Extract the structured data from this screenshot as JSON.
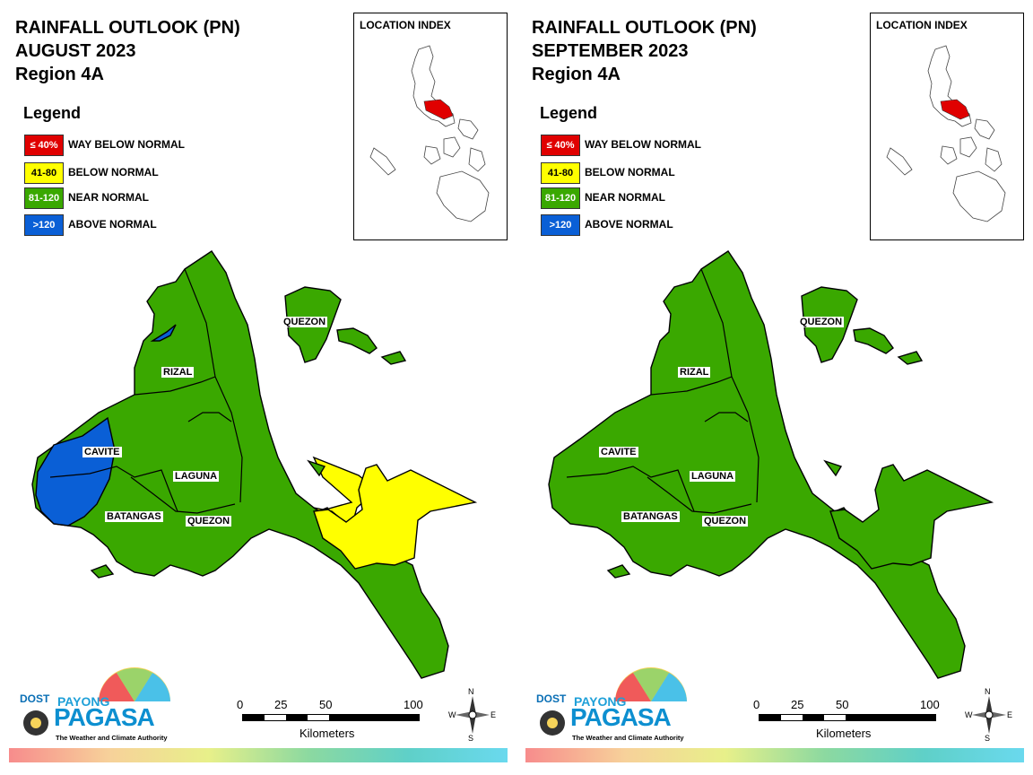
{
  "panels": [
    {
      "title_line1": "RAINFALL OUTLOOK (PN)",
      "title_line2": "AUGUST 2023",
      "title_line3": "Region 4A",
      "legend_title": "Legend",
      "legend": [
        {
          "code": "≤ 40%",
          "label": "WAY BELOW NORMAL",
          "color": "#e00000"
        },
        {
          "code": "41-80",
          "label": "BELOW NORMAL",
          "color": "#ffff00"
        },
        {
          "code": "81-120",
          "label": "NEAR NORMAL",
          "color": "#3aa800"
        },
        {
          "code": ">120",
          "label": "ABOVE NORMAL",
          "color": "#0a5fd6"
        }
      ],
      "location_index_title": "LOCATION INDEX",
      "labels": {
        "quezon_north": "QUEZON",
        "rizal": "RIZAL",
        "cavite": "CAVITE",
        "laguna": "LAGUNA",
        "batangas": "BATANGAS",
        "quezon_south": "QUEZON"
      },
      "scale": {
        "t0": "0",
        "t1": "25",
        "t2": "50",
        "t3": "100",
        "unit": "Kilometers"
      },
      "compass": {
        "n": "N",
        "s": "S",
        "e": "E",
        "w": "W"
      },
      "logo": {
        "dost": "DOST",
        "payong": "PAYONG",
        "pagasa": "PAGASA",
        "tagline": "The Weather and Climate Authority"
      }
    },
    {
      "title_line1": "RAINFALL OUTLOOK (PN)",
      "title_line2": "SEPTEMBER 2023",
      "title_line3": "Region 4A",
      "legend_title": "Legend",
      "legend": [
        {
          "code": "≤ 40%",
          "label": "WAY BELOW NORMAL",
          "color": "#e00000"
        },
        {
          "code": "41-80",
          "label": "BELOW NORMAL",
          "color": "#ffff00"
        },
        {
          "code": "81-120",
          "label": "NEAR NORMAL",
          "color": "#3aa800"
        },
        {
          "code": ">120",
          "label": "ABOVE NORMAL",
          "color": "#0a5fd6"
        }
      ],
      "location_index_title": "LOCATION INDEX",
      "labels": {
        "quezon_north": "QUEZON",
        "rizal": "RIZAL",
        "cavite": "CAVITE",
        "laguna": "LAGUNA",
        "batangas": "BATANGAS",
        "quezon_south": "QUEZON"
      },
      "scale": {
        "t0": "0",
        "t1": "25",
        "t2": "50",
        "t3": "100",
        "unit": "Kilometers"
      },
      "compass": {
        "n": "N",
        "s": "S",
        "e": "E",
        "w": "W"
      },
      "logo": {
        "dost": "DOST",
        "payong": "PAYONG",
        "pagasa": "PAGASA",
        "tagline": "The Weather and Climate Authority"
      }
    }
  ],
  "map_outlook": {
    "august": {
      "near_normal": "most areas",
      "above_normal": "western Cavite and Batangas coast",
      "below_normal": "southern Quezon (Bondoc peninsula area)"
    },
    "september": {
      "near_normal": "all areas"
    }
  }
}
